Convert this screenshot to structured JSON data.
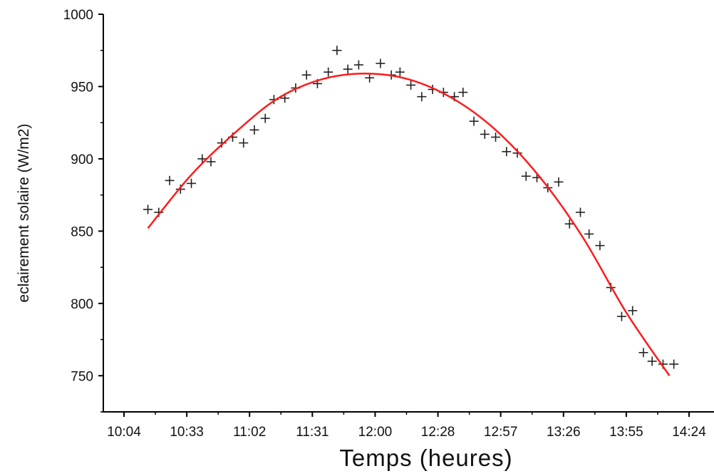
{
  "chart_data": {
    "type": "scatter",
    "title": "",
    "xlabel": "Temps (heures)",
    "ylabel": "eclairement solaire (W/m2)",
    "xlim": [
      "10:04",
      "14:24"
    ],
    "ylim": [
      725,
      1000
    ],
    "x_ticks": [
      "10:04",
      "10:33",
      "11:02",
      "11:31",
      "12:00",
      "12:28",
      "12:57",
      "13:26",
      "13:55",
      "14:24"
    ],
    "y_ticks": [
      750,
      800,
      850,
      900,
      950,
      1000
    ],
    "grid": false,
    "legend": "none",
    "series": [
      {
        "kind": "scatter",
        "marker": "plus",
        "color": "#222222",
        "x": [
          "10:15",
          "10:20",
          "10:25",
          "10:30",
          "10:35",
          "10:40",
          "10:44",
          "10:49",
          "10:54",
          "10:59",
          "11:04",
          "11:09",
          "11:13",
          "11:18",
          "11:23",
          "11:28",
          "11:33",
          "11:38",
          "11:42",
          "11:47",
          "11:52",
          "11:57",
          "12:02",
          "12:07",
          "12:11",
          "12:16",
          "12:21",
          "12:26",
          "12:31",
          "12:36",
          "12:40",
          "12:45",
          "12:50",
          "12:55",
          "13:00",
          "13:05",
          "13:09",
          "13:14",
          "13:19",
          "13:24",
          "13:29",
          "13:34",
          "13:38",
          "13:43",
          "13:48",
          "13:53",
          "13:58",
          "14:03",
          "14:07",
          "14:12",
          "14:17"
        ],
        "values": [
          865,
          863,
          885,
          879,
          883,
          900,
          898,
          911,
          915,
          911,
          920,
          928,
          941,
          942,
          949,
          958,
          952,
          960,
          975,
          962,
          965,
          956,
          966,
          958,
          960,
          951,
          943,
          948,
          946,
          943,
          946,
          926,
          917,
          915,
          905,
          904,
          888,
          887,
          880,
          884,
          855,
          863,
          848,
          840,
          811,
          791,
          795,
          766,
          760,
          758,
          758
        ]
      },
      {
        "kind": "line",
        "color": "#ff1a1a",
        "x": [
          "10:15",
          "10:35",
          "10:55",
          "11:15",
          "11:35",
          "11:55",
          "12:15",
          "12:35",
          "12:55",
          "13:15",
          "13:35",
          "13:55",
          "14:15"
        ],
        "values": [
          852,
          889,
          918,
          942,
          955,
          959,
          955,
          942,
          920,
          888,
          846,
          794,
          750
        ]
      }
    ]
  }
}
